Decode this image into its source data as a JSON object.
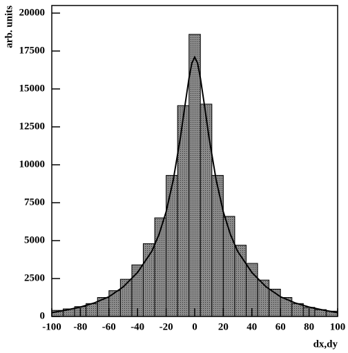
{
  "chart_data": {
    "type": "histogram",
    "bins": [
      -100,
      -92,
      -84,
      -76,
      -68,
      -60,
      -52,
      -44,
      -36,
      -28,
      -20,
      -12,
      -4,
      4,
      12,
      20,
      28,
      36,
      44,
      52,
      60,
      68,
      76,
      84,
      92,
      100
    ],
    "counts": [
      400,
      500,
      650,
      850,
      1250,
      1700,
      2450,
      3400,
      4800,
      6500,
      9300,
      13900,
      18600,
      14000,
      9300,
      6600,
      4700,
      3500,
      2400,
      1800,
      1250,
      850,
      600,
      450,
      350
    ],
    "curve": {
      "x": [
        -100,
        -90,
        -80,
        -70,
        -60,
        -50,
        -40,
        -30,
        -25,
        -20,
        -15,
        -10,
        -7,
        -4,
        -2,
        0,
        2,
        4,
        7,
        10,
        15,
        20,
        25,
        30,
        40,
        50,
        60,
        70,
        80,
        90,
        100
      ],
      "y": [
        250,
        420,
        620,
        900,
        1300,
        1950,
        2900,
        4300,
        5400,
        6900,
        9000,
        11800,
        13800,
        15700,
        16700,
        17100,
        16700,
        15700,
        13800,
        11800,
        9000,
        6900,
        5400,
        4300,
        2900,
        1950,
        1300,
        900,
        620,
        420,
        250
      ]
    },
    "xlabel": "dx,dy",
    "ylabel": "arb. units",
    "xlim": [
      -100,
      100
    ],
    "ylim": [
      0,
      20500
    ],
    "xticks": [
      -100,
      -80,
      -60,
      -40,
      -20,
      0,
      20,
      40,
      60,
      80,
      100
    ],
    "yticks": [
      0,
      2500,
      5000,
      7500,
      10000,
      12500,
      15000,
      17500,
      20000
    ],
    "color": "#7a7a7a"
  }
}
